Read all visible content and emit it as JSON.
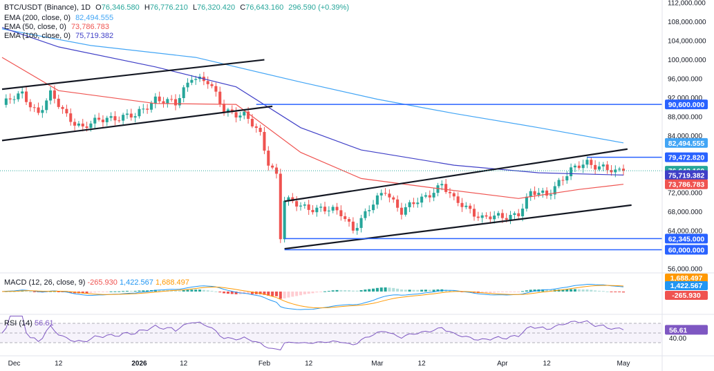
{
  "header": {
    "symbol": "BTC/USDT (Binance), 1D",
    "o_key": "O",
    "o": "76,346.580",
    "h_key": "H",
    "h": "76,776.210",
    "l_key": "L",
    "l": "76,320.420",
    "c_key": "C",
    "c": "76,643.160",
    "change": "296.590 (+0.39%)",
    "ema200_label": "EMA (200, close, 0)",
    "ema200_value": "82,494.555",
    "ema50_label": "EMA (50, close, 0)",
    "ema50_value": "73,786.783",
    "ema100_label": "EMA (100, close, 0)",
    "ema100_value": "75,719.382"
  },
  "colors": {
    "up": "#26a69a",
    "down": "#ef5350",
    "ema200": "#42a5f5",
    "ema50": "#ef5350",
    "ema100": "#3f3fc7",
    "level": "#2962ff",
    "macd": "#2196f3",
    "signal": "#ff9800",
    "rsi": "#7e57c2"
  },
  "price_axis_ticks": [
    "112,000.000",
    "108,000.000",
    "104,000.000",
    "100,000.000",
    "96,000.000",
    "92,000.000",
    "88,000.000",
    "84,000.000",
    "72,000.000",
    "68,000.000",
    "64,000.000",
    "56,000.000"
  ],
  "price_badges": [
    {
      "name": "level-90600",
      "text": "90,600.000",
      "value": 90600,
      "kind": "level"
    },
    {
      "name": "ema200-badge",
      "text": "82,494.555",
      "value": 82494.555,
      "kind": "ema200"
    },
    {
      "name": "level-79472",
      "text": "79,472.820",
      "value": 79472.82,
      "kind": "level"
    },
    {
      "name": "close-badge",
      "text": "76,643.160",
      "value": 76643.16,
      "kind": "close"
    },
    {
      "name": "ema100-badge",
      "text": "75,719.382",
      "value": 75719.382,
      "kind": "ema100"
    },
    {
      "name": "ema50-badge",
      "text": "73,786.783",
      "value": 73786.783,
      "kind": "ema50"
    },
    {
      "name": "level-62345",
      "text": "62,345.000",
      "value": 62345,
      "kind": "level"
    },
    {
      "name": "level-60000",
      "text": "60,000.000",
      "value": 60000,
      "kind": "level"
    }
  ],
  "date_axis_labels": [
    {
      "text": "Dec",
      "date": "2025-12-01",
      "bold": false
    },
    {
      "text": "12",
      "date": "2025-12-12",
      "bold": false
    },
    {
      "text": "2026",
      "date": "2026-01-01",
      "bold": true
    },
    {
      "text": "12",
      "date": "2026-01-12",
      "bold": false
    },
    {
      "text": "Feb",
      "date": "2026-02-01",
      "bold": false
    },
    {
      "text": "12",
      "date": "2026-02-12",
      "bold": false
    },
    {
      "text": "Mar",
      "date": "2026-03-01",
      "bold": false
    },
    {
      "text": "12",
      "date": "2026-03-12",
      "bold": false
    },
    {
      "text": "Apr",
      "date": "2026-04-01",
      "bold": false
    },
    {
      "text": "12",
      "date": "2026-04-12",
      "bold": false
    },
    {
      "text": "May",
      "date": "2026-05-01",
      "bold": false
    }
  ],
  "macd_panel": {
    "label": "MACD (12, 26, close, 9)",
    "macd_value": "1,422.567",
    "signal_value": "1,688.497",
    "histogram_value": "-265.930"
  },
  "rsi_panel": {
    "label": "RSI (14)",
    "value": "56.61",
    "axis_tick": "40.00"
  },
  "chart_data": {
    "type": "candlestick",
    "x_start": "2025-11-28",
    "x_end": "2026-05-01",
    "y_scale": "linear",
    "ylim": [
      55000,
      113000
    ],
    "close_path": [
      [
        "2025-11-28",
        90500
      ],
      [
        "2025-12-03",
        92800
      ],
      [
        "2025-12-07",
        88800
      ],
      [
        "2025-12-10",
        92500
      ],
      [
        "2025-12-14",
        88400
      ],
      [
        "2025-12-18",
        85600
      ],
      [
        "2025-12-24",
        87900
      ],
      [
        "2025-12-31",
        88000
      ],
      [
        "2026-01-05",
        92000
      ],
      [
        "2026-01-10",
        90500
      ],
      [
        "2026-01-14",
        96800
      ],
      [
        "2026-01-18",
        95200
      ],
      [
        "2026-01-22",
        89500
      ],
      [
        "2026-01-27",
        88400
      ],
      [
        "2026-01-31",
        84000
      ],
      [
        "2026-02-02",
        78500
      ],
      [
        "2026-02-04",
        76000
      ],
      [
        "2026-02-05",
        63000
      ],
      [
        "2026-02-06",
        70500
      ],
      [
        "2026-02-10",
        69000
      ],
      [
        "2026-02-15",
        68800
      ],
      [
        "2026-02-20",
        67500
      ],
      [
        "2026-02-23",
        64600
      ],
      [
        "2026-02-27",
        68500
      ],
      [
        "2026-03-03",
        72500
      ],
      [
        "2026-03-07",
        68200
      ],
      [
        "2026-03-12",
        70500
      ],
      [
        "2026-03-17",
        74000
      ],
      [
        "2026-03-20",
        70200
      ],
      [
        "2026-03-24",
        68500
      ],
      [
        "2026-03-27",
        66800
      ],
      [
        "2026-04-01",
        66700
      ],
      [
        "2026-04-05",
        67900
      ],
      [
        "2026-04-08",
        71800
      ],
      [
        "2026-04-12",
        71600
      ],
      [
        "2026-04-15",
        74500
      ],
      [
        "2026-04-18",
        76500
      ],
      [
        "2026-04-22",
        78400
      ],
      [
        "2026-04-26",
        77500
      ],
      [
        "2026-04-29",
        76000
      ],
      [
        "2026-05-01",
        76643.16
      ]
    ],
    "series": [
      {
        "name": "EMA (200, close, 0)",
        "color": "#42a5f5",
        "points": [
          [
            "2025-11-28",
            106500
          ],
          [
            "2025-12-20",
            103000
          ],
          [
            "2026-01-15",
            100500
          ],
          [
            "2026-02-10",
            95300
          ],
          [
            "2026-03-01",
            91700
          ],
          [
            "2026-03-20",
            88700
          ],
          [
            "2026-04-10",
            85700
          ],
          [
            "2026-05-01",
            82494.555
          ]
        ]
      },
      {
        "name": "EMA (100, close, 0)",
        "color": "#3f3fc7",
        "points": [
          [
            "2025-11-28",
            106800
          ],
          [
            "2025-12-12",
            102700
          ],
          [
            "2026-01-05",
            98500
          ],
          [
            "2026-01-25",
            94300
          ],
          [
            "2026-02-10",
            85700
          ],
          [
            "2026-02-25",
            81000
          ],
          [
            "2026-03-20",
            77800
          ],
          [
            "2026-04-10",
            76200
          ],
          [
            "2026-05-01",
            75719.382
          ]
        ]
      },
      {
        "name": "EMA (50, close, 0)",
        "color": "#ef5350",
        "points": [
          [
            "2025-11-28",
            100500
          ],
          [
            "2025-12-12",
            93500
          ],
          [
            "2026-01-05",
            90800
          ],
          [
            "2026-01-25",
            90600
          ],
          [
            "2026-02-10",
            80500
          ],
          [
            "2026-02-25",
            75000
          ],
          [
            "2026-03-15",
            73000
          ],
          [
            "2026-04-05",
            70800
          ],
          [
            "2026-04-20",
            72700
          ],
          [
            "2026-05-01",
            73786.783
          ]
        ]
      }
    ],
    "trendlines": [
      {
        "name": "upper-channel-dec-jan",
        "from": [
          "2025-11-28",
          93800
        ],
        "to": [
          "2026-02-01",
          100000
        ],
        "color": "#131722"
      },
      {
        "name": "lower-channel-dec-jan",
        "from": [
          "2025-11-28",
          83000
        ],
        "to": [
          "2026-02-03",
          90200
        ],
        "color": "#131722"
      },
      {
        "name": "upper-channel-feb-apr",
        "from": [
          "2026-02-06",
          70200
        ],
        "to": [
          "2026-05-02",
          81200
        ],
        "color": "#131722"
      },
      {
        "name": "lower-channel-feb-apr",
        "from": [
          "2026-02-06",
          60200
        ],
        "to": [
          "2026-05-03",
          69400
        ],
        "color": "#131722"
      }
    ],
    "horizontal_levels": [
      {
        "name": "level-90600",
        "value": 90600,
        "from": "2026-01-30",
        "color": "#2962ff"
      },
      {
        "name": "level-79472",
        "value": 79472.82,
        "from": "2026-04-22",
        "color": "#2962ff"
      },
      {
        "name": "level-62345",
        "value": 62345,
        "from": "2026-02-06",
        "color": "#2962ff"
      },
      {
        "name": "level-60000",
        "value": 60000,
        "from": "2026-02-06",
        "color": "#2962ff"
      }
    ],
    "grid": false
  }
}
